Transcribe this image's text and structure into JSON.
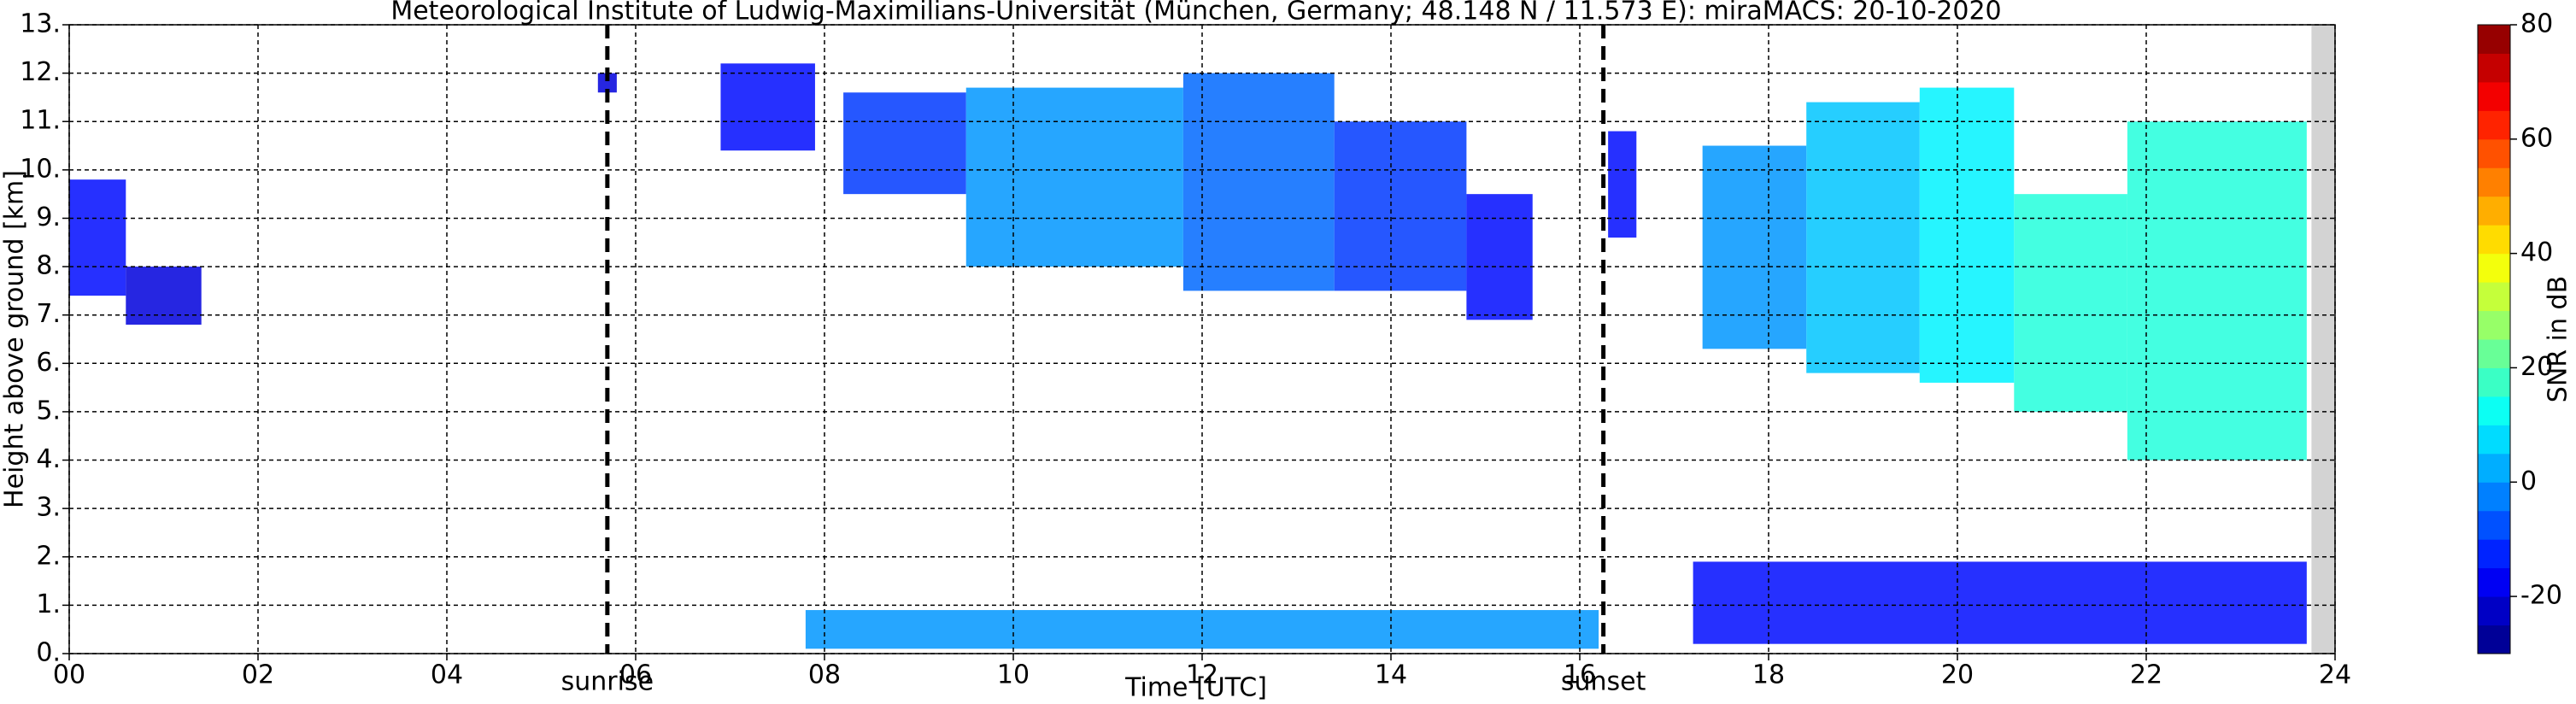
{
  "chart_data": {
    "type": "heatmap",
    "title": "Meteorological Institute of Ludwig-Maximilians-Universität (München, Germany; 48.148 N / 11.573 E):    miraMACS: 20-10-2020",
    "xlabel": "Time [UTC]",
    "ylabel": "Height above ground [km]",
    "colorbar_label": "SNR in dB",
    "xlim": [
      0,
      24
    ],
    "ylim": [
      0,
      13
    ],
    "clim": [
      -30,
      80
    ],
    "xticks": [
      {
        "value": 0,
        "label": "00"
      },
      {
        "value": 2,
        "label": "02"
      },
      {
        "value": 4,
        "label": "04"
      },
      {
        "value": 6,
        "label": "06"
      },
      {
        "value": 8,
        "label": "08"
      },
      {
        "value": 10,
        "label": "10"
      },
      {
        "value": 12,
        "label": "12"
      },
      {
        "value": 14,
        "label": "14"
      },
      {
        "value": 16,
        "label": "16"
      },
      {
        "value": 18,
        "label": "18"
      },
      {
        "value": 20,
        "label": "20"
      },
      {
        "value": 22,
        "label": "22"
      },
      {
        "value": 24,
        "label": "24"
      }
    ],
    "yticks": [
      {
        "value": 0,
        "label": "0."
      },
      {
        "value": 1,
        "label": "1."
      },
      {
        "value": 2,
        "label": "2."
      },
      {
        "value": 3,
        "label": "3."
      },
      {
        "value": 4,
        "label": "4."
      },
      {
        "value": 5,
        "label": "5."
      },
      {
        "value": 6,
        "label": "6."
      },
      {
        "value": 7,
        "label": "7."
      },
      {
        "value": 8,
        "label": "8."
      },
      {
        "value": 9,
        "label": "9."
      },
      {
        "value": 10,
        "label": "10."
      },
      {
        "value": 11,
        "label": "11."
      },
      {
        "value": 12,
        "label": "12."
      },
      {
        "value": 13,
        "label": "13."
      }
    ],
    "cticks": [
      -20,
      0,
      20,
      40,
      60,
      80
    ],
    "grid": true,
    "no_data_from": 23.75,
    "events": [
      {
        "label": "sunrise",
        "x": 5.7
      },
      {
        "label": "sunset",
        "x": 16.25
      }
    ],
    "echoes": [
      {
        "start": 0.0,
        "end": 0.6,
        "base": 7.4,
        "top": 9.8,
        "snr": -15
      },
      {
        "start": 0.6,
        "end": 1.4,
        "base": 6.8,
        "top": 8.0,
        "snr": -20
      },
      {
        "start": 5.6,
        "end": 5.8,
        "base": 11.6,
        "top": 12.0,
        "snr": -20
      },
      {
        "start": 6.9,
        "end": 7.9,
        "base": 10.4,
        "top": 12.2,
        "snr": -15
      },
      {
        "start": 8.2,
        "end": 9.5,
        "base": 9.5,
        "top": 11.6,
        "snr": -10
      },
      {
        "start": 9.5,
        "end": 11.8,
        "base": 8.0,
        "top": 11.7,
        "snr": 0
      },
      {
        "start": 11.8,
        "end": 13.4,
        "base": 7.5,
        "top": 12.0,
        "snr": -5
      },
      {
        "start": 13.4,
        "end": 14.8,
        "base": 7.5,
        "top": 11.0,
        "snr": -10
      },
      {
        "start": 14.8,
        "end": 15.5,
        "base": 6.9,
        "top": 9.5,
        "snr": -15
      },
      {
        "start": 16.3,
        "end": 16.6,
        "base": 8.6,
        "top": 10.8,
        "snr": -15
      },
      {
        "start": 17.3,
        "end": 18.4,
        "base": 6.3,
        "top": 10.5,
        "snr": 0
      },
      {
        "start": 18.4,
        "end": 19.6,
        "base": 5.8,
        "top": 11.4,
        "snr": 5
      },
      {
        "start": 19.6,
        "end": 20.6,
        "base": 5.6,
        "top": 11.7,
        "snr": 10
      },
      {
        "start": 20.6,
        "end": 21.8,
        "base": 5.0,
        "top": 9.5,
        "snr": 15
      },
      {
        "start": 21.8,
        "end": 23.7,
        "base": 4.0,
        "top": 11.0,
        "snr": 15
      },
      {
        "start": 7.8,
        "end": 16.2,
        "base": 0.1,
        "top": 0.9,
        "snr": 0
      },
      {
        "start": 17.2,
        "end": 23.7,
        "base": 0.2,
        "top": 1.9,
        "snr": -15
      }
    ]
  }
}
